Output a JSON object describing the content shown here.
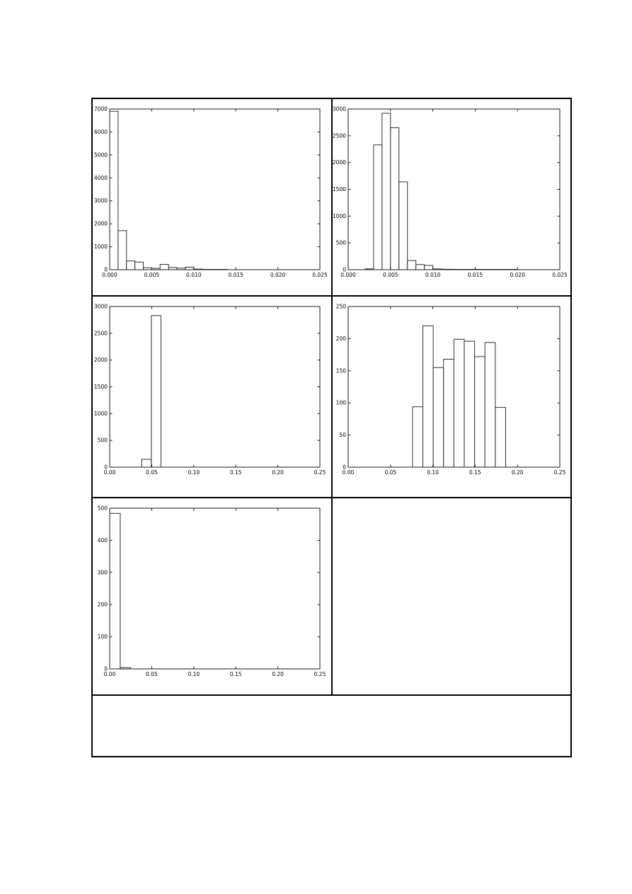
{
  "figure": {
    "background_color": "#ffffff",
    "table_border_color": "#000000",
    "bar_fill_color": "#ffffff",
    "bar_edge_color": "#2f2f2f",
    "axis_color": "#1a1a1a",
    "grid_rows": 4,
    "grid_cols": 2,
    "empty_cells": [
      "row3-col2",
      "row4-footer"
    ]
  },
  "chart_data": [
    {
      "position": "row1-col1",
      "type": "bar",
      "subtype": "histogram",
      "xlim": [
        0,
        0.025
      ],
      "ylim": [
        0,
        7000
      ],
      "xtick_labels": [
        "0.000",
        "0.005",
        "0.010",
        "0.015",
        "0.020",
        "0.025"
      ],
      "ytick_labels": [
        "0",
        "1000",
        "2000",
        "3000",
        "4000",
        "5000",
        "6000",
        "7000"
      ],
      "bin_start": 0.0,
      "bin_width": 0.001,
      "counts": [
        6900,
        1700,
        380,
        330,
        85,
        55,
        230,
        100,
        65,
        110,
        25,
        12,
        10,
        8,
        0,
        0,
        0,
        0,
        0,
        0,
        0,
        0,
        0,
        0,
        0
      ],
      "grid": false,
      "legend": false
    },
    {
      "position": "row1-col2",
      "type": "bar",
      "subtype": "histogram",
      "xlim": [
        0,
        0.025
      ],
      "ylim": [
        0,
        3000
      ],
      "xtick_labels": [
        "0.000",
        "0.005",
        "0.010",
        "0.015",
        "0.020",
        "0.025"
      ],
      "ytick_labels": [
        "0",
        "500",
        "1000",
        "1500",
        "2000",
        "2500",
        "3000"
      ],
      "bin_start": 0.002,
      "bin_width": 0.001,
      "counts": [
        15,
        2330,
        2920,
        2650,
        1640,
        170,
        95,
        80,
        15,
        8,
        5,
        4,
        3,
        2,
        2,
        2,
        2,
        2
      ],
      "grid": false,
      "legend": false
    },
    {
      "position": "row2-col1",
      "type": "bar",
      "subtype": "histogram",
      "xlim": [
        0,
        0.25
      ],
      "ylim": [
        0,
        3000
      ],
      "xtick_labels": [
        "0.00",
        "0.05",
        "0.10",
        "0.15",
        "0.20",
        "0.25"
      ],
      "ytick_labels": [
        "0",
        "500",
        "1000",
        "1500",
        "2000",
        "2500",
        "3000"
      ],
      "bin_start": 0.038,
      "bin_width": 0.0115,
      "counts": [
        148,
        2830
      ],
      "grid": false,
      "legend": false
    },
    {
      "position": "row2-col2",
      "type": "bar",
      "subtype": "histogram",
      "xlim": [
        0,
        0.25
      ],
      "ylim": [
        0,
        250
      ],
      "xtick_labels": [
        "0.00",
        "0.05",
        "0.10",
        "0.15",
        "0.20",
        "0.25"
      ],
      "ytick_labels": [
        "0",
        "50",
        "100",
        "150",
        "200",
        "250"
      ],
      "bin_start": 0.076,
      "bin_width": 0.01222,
      "counts": [
        94,
        220,
        155,
        168,
        199,
        196,
        172,
        194,
        93
      ],
      "grid": false,
      "legend": false
    },
    {
      "position": "row3-col1",
      "type": "bar",
      "subtype": "histogram",
      "xlim": [
        0,
        0.25
      ],
      "ylim": [
        0,
        500
      ],
      "xtick_labels": [
        "0.00",
        "0.05",
        "0.10",
        "0.15",
        "0.20",
        "0.25"
      ],
      "ytick_labels": [
        "0",
        "100",
        "200",
        "300",
        "400",
        "500"
      ],
      "bin_start": 0.0,
      "bin_width": 0.0125,
      "counts": [
        484,
        4
      ],
      "grid": false,
      "legend": false
    }
  ]
}
